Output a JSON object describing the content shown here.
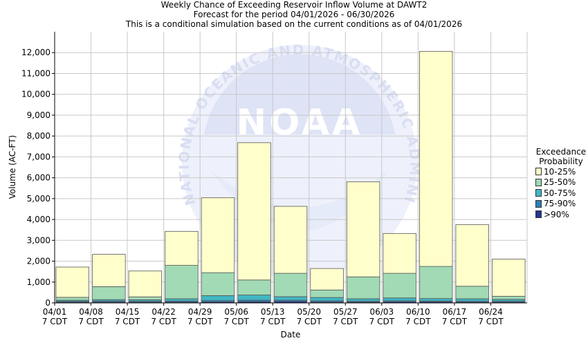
{
  "title": {
    "line1": "Weekly Chance of Exceeding Reservoir Inflow Volume at DAWT2",
    "line2": "Forecast for the period 04/01/2026 - 06/30/2026",
    "line3": "This is a conditional simulation based on the current conditions as of 04/01/2026"
  },
  "watermark": {
    "arc_text": "NATIONAL OCEANIC AND ATMOSPHERIC ADMINISTRATION",
    "logo_text": "NOAA"
  },
  "colors": {
    "p10_25": "#ffffcc",
    "p25_50": "#a1dab4",
    "p50_75": "#41b6c4",
    "p75_90": "#2c7fb8",
    "p90": "#253494",
    "grid": "#c8c8c8"
  },
  "legend": {
    "title_line1": "Exceedance",
    "title_line2": "Probability",
    "items": [
      {
        "label": "10-25%",
        "color": "#ffffcc"
      },
      {
        "label": "25-50%",
        "color": "#a1dab4"
      },
      {
        "label": "50-75%",
        "color": "#41b6c4"
      },
      {
        "label": "75-90%",
        "color": "#2c7fb8"
      },
      {
        "label": ">90%",
        "color": "#253494"
      }
    ]
  },
  "chart_data": {
    "type": "bar",
    "xlabel": "Date",
    "ylabel": "Volume (AC-FT)",
    "ylim": [
      0,
      13000
    ],
    "yticks": [
      0,
      1000,
      2000,
      3000,
      4000,
      5000,
      6000,
      7000,
      8000,
      9000,
      10000,
      11000,
      12000
    ],
    "ytick_labels": [
      "0",
      "1,000",
      "2,000",
      "3,000",
      "4,000",
      "5,000",
      "6,000",
      "7,000",
      "8,000",
      "9,000",
      "10,000",
      "11,000",
      "12,000"
    ],
    "grid": true,
    "legend_position": "right",
    "categories": [
      "04/01",
      "04/08",
      "04/15",
      "04/22",
      "04/29",
      "05/06",
      "05/13",
      "05/20",
      "05/27",
      "06/03",
      "06/10",
      "06/17",
      "06/24"
    ],
    "category_sublabel": "7 CDT",
    "stacked_series_note": "each series value is the upper edge of its band (cumulative exceedance volume)",
    "series": [
      {
        "name": ">90%",
        "values": [
          40,
          40,
          40,
          40,
          50,
          60,
          70,
          40,
          40,
          50,
          50,
          40,
          40
        ]
      },
      {
        "name": "75-90%",
        "values": [
          80,
          90,
          80,
          90,
          110,
          130,
          130,
          100,
          80,
          100,
          90,
          80,
          80
        ]
      },
      {
        "name": "50-75%",
        "values": [
          130,
          160,
          150,
          200,
          350,
          380,
          300,
          260,
          200,
          240,
          210,
          200,
          170
        ]
      },
      {
        "name": "25-50%",
        "values": [
          270,
          780,
          290,
          1800,
          1450,
          1100,
          1420,
          620,
          1250,
          1420,
          1750,
          800,
          320
        ]
      },
      {
        "name": "10-25%",
        "values": [
          1720,
          2330,
          1530,
          3430,
          5040,
          7680,
          4630,
          1650,
          5810,
          3330,
          12060,
          3750,
          2100
        ]
      }
    ]
  }
}
